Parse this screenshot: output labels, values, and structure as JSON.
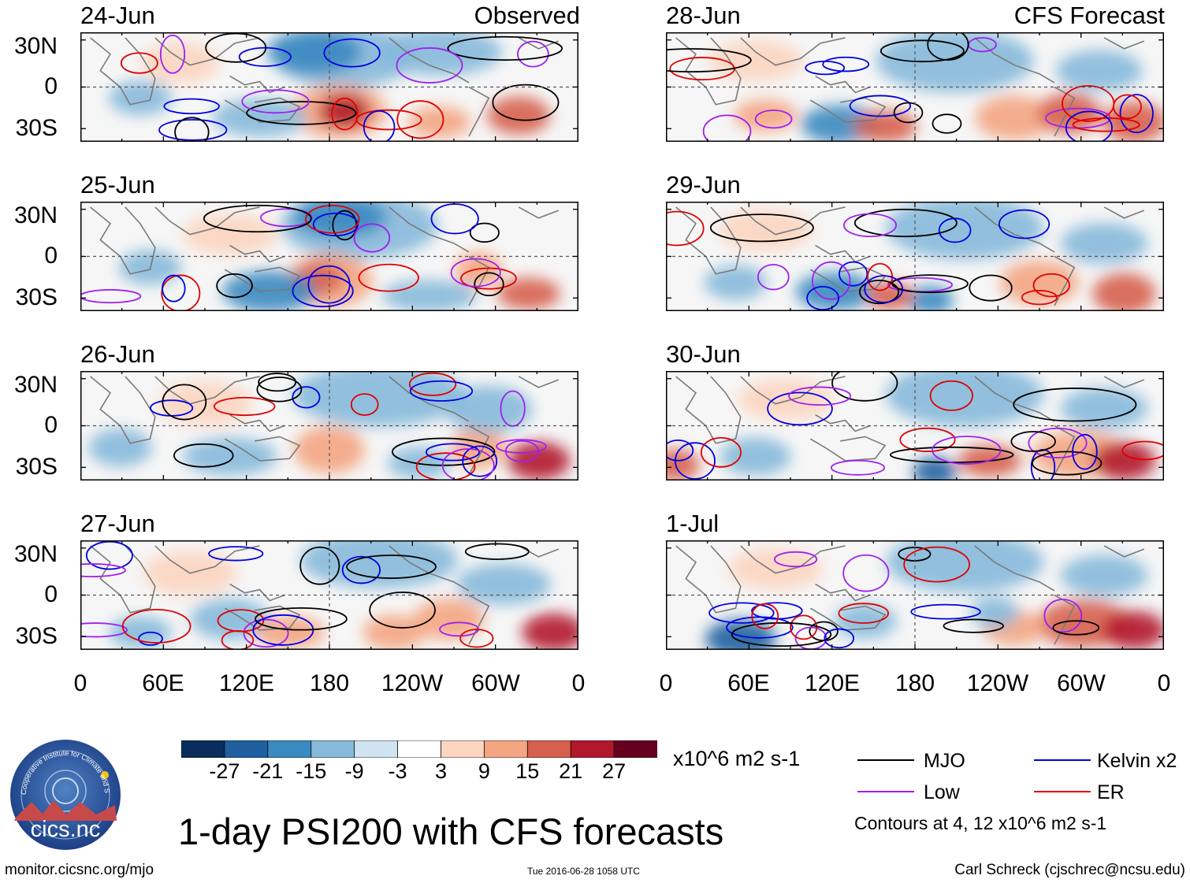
{
  "header": {
    "observed_label": "Observed",
    "forecast_label": "CFS Forecast"
  },
  "panels_left": [
    {
      "date": "24-Jun"
    },
    {
      "date": "25-Jun"
    },
    {
      "date": "26-Jun"
    },
    {
      "date": "27-Jun"
    }
  ],
  "panels_right": [
    {
      "date": "28-Jun"
    },
    {
      "date": "29-Jun"
    },
    {
      "date": "30-Jun"
    },
    {
      "date": "1-Jul"
    }
  ],
  "lat_labels": [
    "30N",
    "0",
    "30S"
  ],
  "lon_labels": [
    "0",
    "60E",
    "120E",
    "180",
    "120W",
    "60W",
    "0"
  ],
  "colorbar": {
    "unit": "x10^6 m2 s-1",
    "ticks": [
      "-27",
      "-21",
      "-15",
      "-9",
      "-3",
      "3",
      "9",
      "15",
      "21",
      "27"
    ],
    "colors": [
      "#0a2d5e",
      "#1f5fa0",
      "#3a89c0",
      "#86b9da",
      "#cfe3f0",
      "#ffffff",
      "#fcd5c0",
      "#f4a582",
      "#d6604d",
      "#b2182b",
      "#67001f"
    ]
  },
  "legend": {
    "items": [
      {
        "label": "MJO",
        "color": "#000000"
      },
      {
        "label": "Kelvin x2",
        "color": "#0000e0"
      },
      {
        "label": "Low",
        "color": "#a020f0"
      },
      {
        "label": "ER",
        "color": "#e00000"
      }
    ],
    "note": "Contours at 4, 12 x10^6 m2 s-1"
  },
  "logo": {
    "text": "cics.nc",
    "ring_text": "Cooperative Institute for Climate and Satellites"
  },
  "title": "1-day PSI200 with CFS forecasts",
  "footer": {
    "url": "monitor.cicsnc.org/mjo",
    "timestamp": "Tue 2016-06-28 1058 UTC",
    "author": "Carl Schreck (cjschrec@ncsu.edu)"
  }
}
